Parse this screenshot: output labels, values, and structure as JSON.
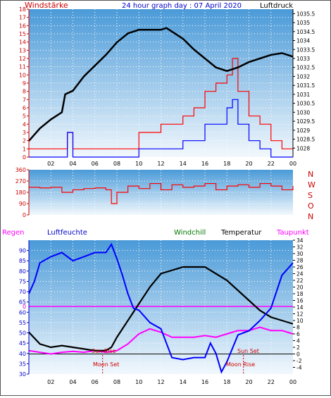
{
  "header": {
    "left_label": "Windstärke",
    "title": "24 hour graph day : 07 April 2020",
    "right_label": "Luftdruck"
  },
  "colors": {
    "wind": "#ff0000",
    "gust": "#0000ff",
    "pressure": "#000000",
    "temperature": "#000000",
    "humidity": "#0000ff",
    "dewpoint": "#ff00ff",
    "windchill": "#007700",
    "rain": "#ff00ff",
    "axis_left": "#cc0000",
    "axis_blue": "#0000cc",
    "grid_dots": "#ffffff",
    "panel_top": "#4a9ad8",
    "panel_bottom": "#f2f8fd"
  },
  "bottom_legend": {
    "regen": "Regen",
    "luftfeuchte": "Luftfeuchte",
    "windchill": "Windchill",
    "temperatur": "Temperatur",
    "taupunkt": "Taupunkt"
  },
  "annotations": {
    "sun_rise": "Sun Rise",
    "sun_set": "Sun Set",
    "moon_set": "Moon Set",
    "moon_rise": "Moon Rise",
    "zero_line": "0"
  },
  "chart_data": [
    {
      "type": "line",
      "panel": "top",
      "x_label_ticks": [
        "02",
        "04",
        "06",
        "08",
        "10",
        "12",
        "14",
        "16",
        "18",
        "20",
        "22",
        "00"
      ],
      "x_range_hours": [
        0,
        24
      ],
      "left_axis": {
        "range": [
          0,
          18
        ],
        "ticks": [
          "0",
          "1",
          "2",
          "3",
          "4",
          "5",
          "6",
          "7",
          "8",
          "9",
          "10",
          "11",
          "12",
          "13",
          "14",
          "15",
          "16",
          "17",
          "18"
        ]
      },
      "right_axis": {
        "range": [
          1027.5,
          1035.75
        ],
        "ticks": [
          "1028",
          "1028.5",
          "1029",
          "1029.5",
          "1030",
          "1030.5",
          "1031",
          "1031.5",
          "1032",
          "1032.5",
          "1033",
          "1033.5",
          "1034",
          "1034.5",
          "1035",
          "1035.5"
        ]
      },
      "series": [
        {
          "name": "Luftdruck",
          "axis": "right",
          "x": [
            0,
            1,
            2,
            3,
            3.3,
            4,
            5,
            6,
            7,
            8,
            9,
            10,
            11,
            12,
            12.5,
            13,
            14,
            15,
            16,
            17,
            18,
            19,
            20,
            21,
            22,
            23,
            24
          ],
          "y": [
            1028.4,
            1029.1,
            1029.6,
            1030.0,
            1031.0,
            1031.2,
            1032.0,
            1032.6,
            1033.2,
            1033.9,
            1034.4,
            1034.6,
            1034.6,
            1034.6,
            1034.7,
            1034.5,
            1034.1,
            1033.5,
            1033.0,
            1032.5,
            1032.3,
            1032.5,
            1032.8,
            1033.0,
            1033.2,
            1033.3,
            1033.1
          ]
        },
        {
          "name": "Windstärke",
          "axis": "left",
          "x": [
            0,
            2,
            3,
            3.5,
            4,
            6,
            8,
            9,
            10,
            11,
            12,
            13,
            14,
            15,
            16,
            17,
            18,
            18.5,
            19,
            20,
            21,
            22,
            23,
            24
          ],
          "y": [
            1,
            1,
            1,
            3,
            1,
            1,
            1,
            1,
            3,
            3,
            4,
            4,
            5,
            6,
            8,
            9,
            10,
            12,
            8,
            5,
            4,
            2,
            1,
            1
          ]
        },
        {
          "name": "Böen",
          "axis": "left",
          "x": [
            0,
            3,
            3.5,
            4,
            8,
            9,
            10,
            11,
            12,
            13,
            14,
            15,
            16,
            17,
            18,
            18.5,
            19,
            20,
            21,
            22,
            24
          ],
          "y": [
            0,
            0,
            3,
            0,
            0,
            0,
            1,
            1,
            1,
            1,
            2,
            2,
            4,
            4,
            6,
            7,
            4,
            2,
            1,
            0,
            0
          ]
        }
      ]
    },
    {
      "type": "line",
      "panel": "middle",
      "left_axis": {
        "range": [
          0,
          360
        ],
        "ticks": [
          "0",
          "90",
          "180",
          "270",
          "360"
        ]
      },
      "right_labels": [
        "N",
        "W",
        "S",
        "O",
        "N"
      ],
      "series": [
        {
          "name": "Windrichtung",
          "x": [
            0,
            1,
            2,
            3,
            4,
            5,
            6,
            7,
            7.5,
            8,
            9,
            10,
            11,
            12,
            13,
            14,
            15,
            16,
            17,
            18,
            19,
            20,
            21,
            22,
            23,
            24
          ],
          "y": [
            220,
            215,
            220,
            180,
            200,
            210,
            215,
            200,
            90,
            180,
            230,
            210,
            250,
            200,
            240,
            220,
            230,
            250,
            200,
            230,
            240,
            220,
            250,
            230,
            200,
            230
          ]
        }
      ]
    },
    {
      "type": "line",
      "panel": "bottom",
      "x_label_ticks": [
        "02",
        "04",
        "06",
        "08",
        "10",
        "12",
        "14",
        "16",
        "18",
        "20",
        "22",
        "00"
      ],
      "left_axis": {
        "range": [
          30,
          95
        ],
        "ticks": [
          "30",
          "35",
          "40",
          "45",
          "50",
          "55",
          "60",
          "65",
          "70",
          "75",
          "80",
          "85",
          "90"
        ]
      },
      "right_axis": {
        "range": [
          -6,
          34
        ],
        "ticks": [
          "-4",
          "-2",
          "0",
          "2",
          "4",
          "6",
          "8",
          "10",
          "12",
          "14",
          "16",
          "18",
          "20",
          "22",
          "24",
          "26",
          "28",
          "30",
          "32",
          "34"
        ]
      },
      "series": [
        {
          "name": "Luftfeuchte",
          "axis": "left",
          "x": [
            0,
            0.5,
            1,
            2,
            3,
            4,
            5,
            6,
            7,
            7.5,
            8,
            8.5,
            9,
            9.5,
            10,
            11,
            12,
            13,
            14,
            15,
            16,
            16.5,
            17,
            17.5,
            18,
            19,
            20,
            21,
            22,
            23,
            24
          ],
          "y": [
            69,
            75,
            84,
            87,
            89,
            85,
            87,
            89,
            89,
            93,
            86,
            78,
            69,
            62,
            61,
            55,
            52,
            38,
            37,
            38,
            38,
            45,
            40,
            31,
            36,
            49,
            51,
            56,
            62,
            78,
            84
          ]
        },
        {
          "name": "Temperatur",
          "axis": "right",
          "x": [
            0,
            1,
            2,
            3,
            4,
            5,
            6,
            7,
            7.5,
            8,
            9,
            10,
            11,
            12,
            13,
            14,
            15,
            16,
            17,
            18,
            19,
            20,
            21,
            22,
            23,
            24
          ],
          "y": [
            6.5,
            3,
            2,
            2.5,
            2,
            1.5,
            1,
            1,
            2,
            5,
            10,
            15,
            20,
            24,
            25,
            26,
            26,
            26,
            24,
            22,
            19,
            16,
            13,
            11,
            10,
            9
          ]
        },
        {
          "name": "Taupunkt",
          "axis": "right",
          "x": [
            0,
            1,
            2,
            3,
            4,
            5,
            6,
            7,
            8,
            9,
            10,
            11,
            12,
            13,
            14,
            15,
            16,
            17,
            18,
            19,
            20,
            21,
            22,
            23,
            24
          ],
          "y": [
            1,
            0.5,
            0,
            0.5,
            0.8,
            0.5,
            1,
            0.5,
            1,
            3,
            6,
            7.5,
            6.5,
            5,
            5,
            5,
            5.5,
            5,
            6,
            7,
            7,
            8,
            7,
            7,
            6
          ]
        }
      ]
    }
  ]
}
